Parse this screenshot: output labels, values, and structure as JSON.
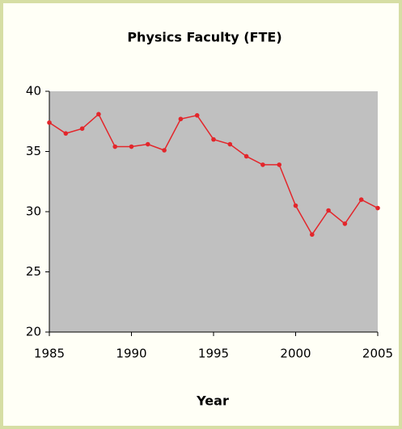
{
  "chart_data": {
    "type": "line",
    "title": "Physics Faculty (FTE)",
    "x_label": "Year",
    "x": [
      1985,
      1986,
      1987,
      1988,
      1989,
      1990,
      1991,
      1992,
      1993,
      1994,
      1995,
      1996,
      1997,
      1998,
      1999,
      2000,
      2001,
      2002,
      2003,
      2004,
      2005
    ],
    "values": [
      37.4,
      36.5,
      36.9,
      38.1,
      35.4,
      35.4,
      35.6,
      35.1,
      37.7,
      38.0,
      36.0,
      35.6,
      34.6,
      33.9,
      33.9,
      30.5,
      28.1,
      30.1,
      29.0,
      31.0,
      30.3
    ],
    "color": "#e3262b",
    "xlim": [
      1985,
      2005
    ],
    "xticks": [
      1985,
      1990,
      1995,
      2000,
      2005
    ],
    "ylim": [
      20,
      40
    ],
    "yticks": [
      20,
      25,
      30,
      35,
      40
    ],
    "plot_background": "#c0c0c0"
  }
}
